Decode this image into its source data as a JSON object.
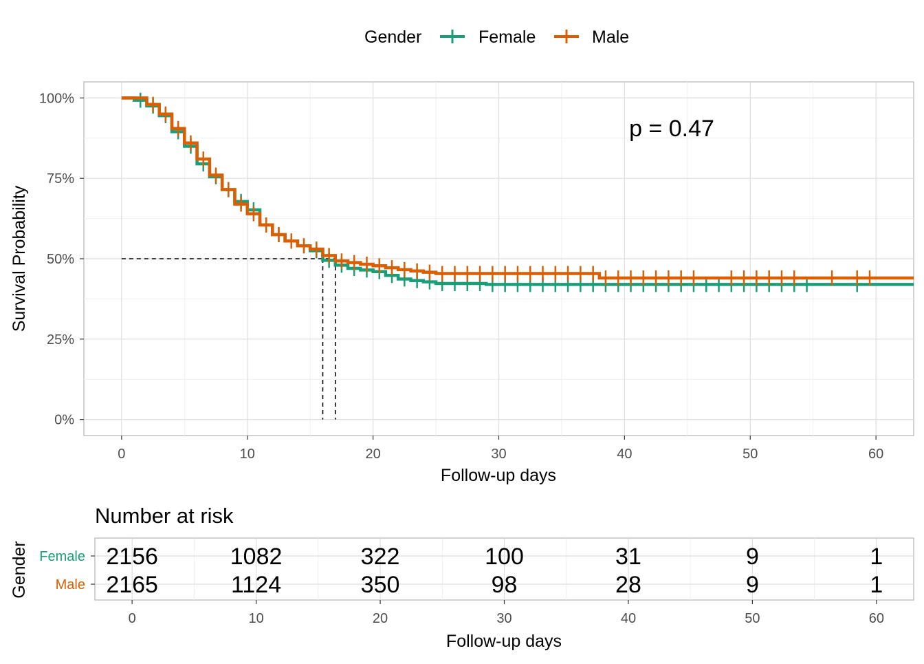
{
  "legend": {
    "title": "Gender",
    "items": [
      {
        "label": "Female",
        "color": "#1b9e77"
      },
      {
        "label": "Male",
        "color": "#d95f02"
      }
    ]
  },
  "chart_data": [
    {
      "type": "line",
      "subtype": "kaplan-meier-step",
      "xlabel": "Follow-up days",
      "ylabel": "Survival Probability",
      "xlim": [
        -3,
        63
      ],
      "ylim": [
        -0.05,
        1.05
      ],
      "x_ticks": [
        "0",
        "10",
        "20",
        "30",
        "40",
        "50",
        "60"
      ],
      "y_ticks": [
        "0%",
        "25%",
        "50%",
        "75%",
        "100%"
      ],
      "annotation": "p = 0.47",
      "median_survival": [
        {
          "series": "Female",
          "x": 16,
          "y": 0.5
        },
        {
          "series": "Male",
          "x": 17,
          "y": 0.5
        }
      ],
      "grid": true,
      "legend_position": "top",
      "series": [
        {
          "name": "Female",
          "color": "#1b9e77",
          "steps": [
            [
              0,
              1.0
            ],
            [
              1,
              0.993
            ],
            [
              2,
              0.975
            ],
            [
              3,
              0.945
            ],
            [
              4,
              0.895
            ],
            [
              5,
              0.85
            ],
            [
              6,
              0.795
            ],
            [
              7,
              0.755
            ],
            [
              8,
              0.715
            ],
            [
              9,
              0.678
            ],
            [
              10,
              0.652
            ],
            [
              11,
              0.605
            ],
            [
              12,
              0.575
            ],
            [
              13,
              0.555
            ],
            [
              14,
              0.54
            ],
            [
              15,
              0.525
            ],
            [
              16,
              0.495
            ],
            [
              17,
              0.48
            ],
            [
              18,
              0.47
            ],
            [
              19,
              0.465
            ],
            [
              20,
              0.46
            ],
            [
              21,
              0.448
            ],
            [
              22,
              0.437
            ],
            [
              23,
              0.432
            ],
            [
              24,
              0.428
            ],
            [
              25,
              0.423
            ],
            [
              29,
              0.42
            ],
            [
              63,
              0.42
            ]
          ],
          "censor_x": [
            1,
            2,
            3,
            4,
            5,
            6,
            7,
            8,
            9,
            10,
            11,
            12,
            13,
            14,
            15,
            16,
            17,
            18,
            19,
            20,
            21,
            22,
            23,
            24,
            25,
            26,
            27,
            28,
            29,
            30,
            31,
            32,
            33,
            34,
            35,
            36,
            37,
            38,
            39,
            40,
            41,
            42,
            43,
            44,
            45,
            46,
            47,
            48,
            49,
            50,
            51,
            52,
            53,
            54,
            58
          ]
        },
        {
          "name": "Male",
          "color": "#d95f02",
          "steps": [
            [
              0,
              1.0
            ],
            [
              2,
              0.98
            ],
            [
              3,
              0.95
            ],
            [
              4,
              0.905
            ],
            [
              5,
              0.86
            ],
            [
              6,
              0.81
            ],
            [
              7,
              0.76
            ],
            [
              8,
              0.715
            ],
            [
              9,
              0.67
            ],
            [
              10,
              0.64
            ],
            [
              11,
              0.605
            ],
            [
              12,
              0.575
            ],
            [
              13,
              0.555
            ],
            [
              14,
              0.54
            ],
            [
              15,
              0.53
            ],
            [
              16,
              0.51
            ],
            [
              17,
              0.493
            ],
            [
              18,
              0.488
            ],
            [
              19,
              0.483
            ],
            [
              20,
              0.478
            ],
            [
              21,
              0.472
            ],
            [
              22,
              0.466
            ],
            [
              23,
              0.462
            ],
            [
              24,
              0.458
            ],
            [
              25,
              0.454
            ],
            [
              38,
              0.44
            ],
            [
              63,
              0.44
            ]
          ],
          "censor_x": [
            2,
            3,
            4,
            5,
            6,
            7,
            8,
            9,
            10,
            11,
            12,
            13,
            14,
            15,
            16,
            17,
            18,
            19,
            20,
            21,
            22,
            23,
            24,
            25,
            26,
            27,
            28,
            29,
            30,
            31,
            32,
            33,
            34,
            35,
            36,
            37,
            38,
            39,
            40,
            41,
            42,
            43,
            44,
            45,
            48,
            49,
            50,
            51,
            52,
            53,
            56,
            58,
            59
          ]
        }
      ]
    },
    {
      "type": "table",
      "title": "Number at risk",
      "xlabel": "Follow-up days",
      "ylabel": "Gender",
      "xlim": [
        -3,
        63
      ],
      "x_ticks": [
        "0",
        "10",
        "20",
        "30",
        "40",
        "50",
        "60"
      ],
      "time_points": [
        0,
        10,
        20,
        30,
        40,
        50,
        60
      ],
      "rows": [
        {
          "name": "Female",
          "color": "#1b9e77",
          "counts": [
            "2156",
            "1082",
            "322",
            "100",
            "31",
            "9",
            "1"
          ]
        },
        {
          "name": "Male",
          "color": "#d95f02",
          "counts": [
            "2165",
            "1124",
            "350",
            "98",
            "28",
            "9",
            "1"
          ]
        }
      ]
    }
  ]
}
